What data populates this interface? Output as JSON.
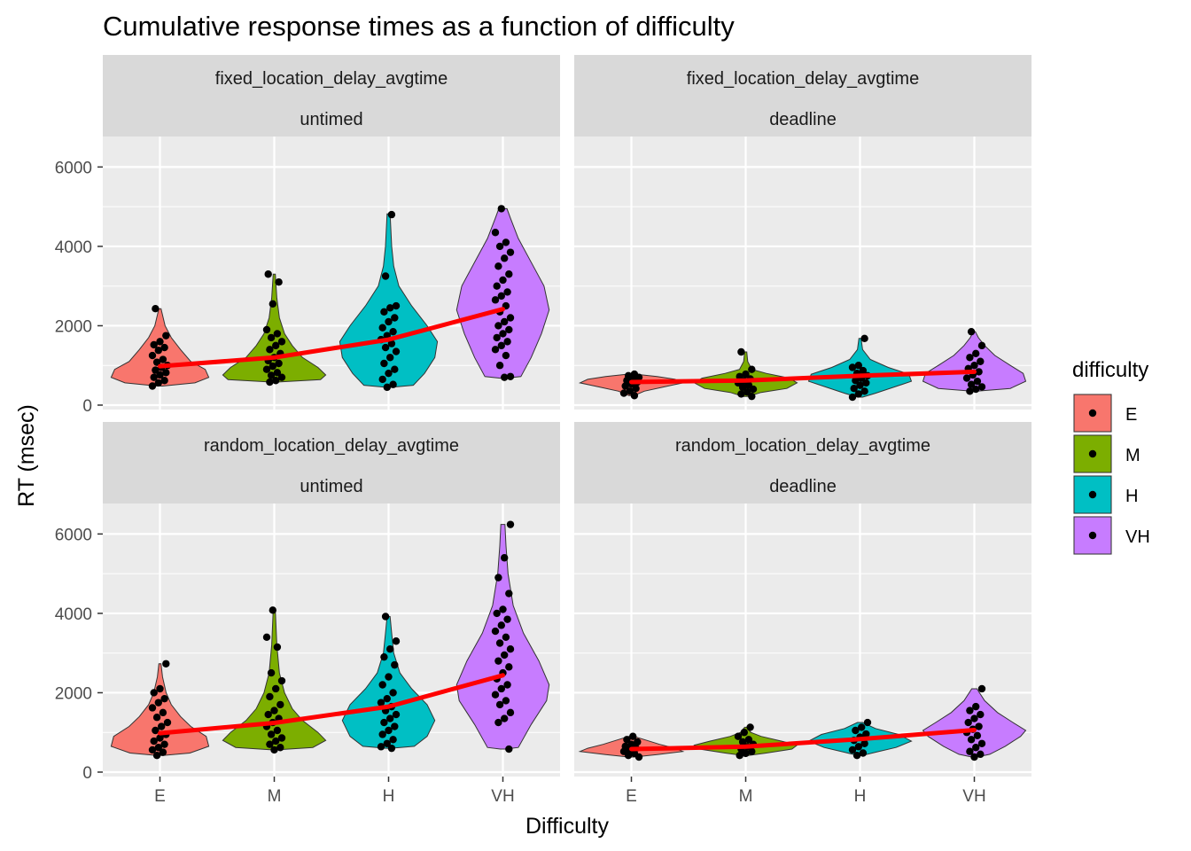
{
  "chart_data": {
    "type": "violin",
    "title": "Cumulative response times as a function of difficulty",
    "xlabel": "Difficulty",
    "ylabel": "RT (msec)",
    "categories": [
      "E",
      "M",
      "H",
      "VH"
    ],
    "y_ticks": [
      "0",
      "2000",
      "4000",
      "6000"
    ],
    "ylim": [
      0,
      6500
    ],
    "grid": true,
    "legend": {
      "title": "difficulty",
      "placement": "right",
      "entries": [
        {
          "label": "E",
          "color": "#F8766D"
        },
        {
          "label": "M",
          "color": "#7CAE00"
        },
        {
          "label": "H",
          "color": "#00BFC4"
        },
        {
          "label": "VH",
          "color": "#C77CFF"
        }
      ]
    },
    "trend_color": "#FF0000",
    "facets": [
      {
        "strip_top": "fixed_location_delay_avgtime",
        "strip_bottom": "untimed",
        "trend": [
          980,
          1200,
          1650,
          2420
        ],
        "violins": [
          {
            "min": 480,
            "max": 2430,
            "shape": [
              [
                480,
                0.05
              ],
              [
                560,
                0.68
              ],
              [
                700,
                0.95
              ],
              [
                900,
                0.88
              ],
              [
                1100,
                0.6
              ],
              [
                1400,
                0.4
              ],
              [
                1700,
                0.22
              ],
              [
                2000,
                0.1
              ],
              [
                2430,
                0.02
              ]
            ]
          },
          {
            "min": 580,
            "max": 3300,
            "shape": [
              [
                580,
                0.05
              ],
              [
                640,
                0.9
              ],
              [
                760,
                1.0
              ],
              [
                950,
                0.85
              ],
              [
                1200,
                0.55
              ],
              [
                1500,
                0.35
              ],
              [
                1800,
                0.2
              ],
              [
                2200,
                0.1
              ],
              [
                2700,
                0.05
              ],
              [
                3300,
                0.02
              ]
            ]
          },
          {
            "min": 450,
            "max": 4820,
            "shape": [
              [
                450,
                0.05
              ],
              [
                500,
                0.48
              ],
              [
                800,
                0.7
              ],
              [
                1200,
                0.9
              ],
              [
                1600,
                0.95
              ],
              [
                2000,
                0.75
              ],
              [
                2500,
                0.45
              ],
              [
                3000,
                0.2
              ],
              [
                3500,
                0.1
              ],
              [
                4000,
                0.06
              ],
              [
                4820,
                0.03
              ]
            ]
          },
          {
            "min": 680,
            "max": 4950,
            "shape": [
              [
                680,
                0.05
              ],
              [
                720,
                0.35
              ],
              [
                1200,
                0.55
              ],
              [
                1800,
                0.75
              ],
              [
                2400,
                0.9
              ],
              [
                3000,
                0.8
              ],
              [
                3600,
                0.55
              ],
              [
                4200,
                0.3
              ],
              [
                4700,
                0.15
              ],
              [
                4950,
                0.08
              ]
            ]
          }
        ],
        "points": [
          [
            480,
            560,
            620,
            700,
            760,
            820,
            880,
            950,
            1000,
            1080,
            1150,
            1250,
            1380,
            1450,
            1520,
            1600,
            1750,
            2430
          ],
          [
            580,
            620,
            700,
            750,
            820,
            900,
            980,
            1050,
            1120,
            1200,
            1300,
            1400,
            1500,
            1600,
            1700,
            1800,
            1900,
            2550,
            3100,
            3300
          ],
          [
            450,
            520,
            650,
            800,
            900,
            1050,
            1200,
            1350,
            1450,
            1550,
            1650,
            1750,
            1850,
            1950,
            2100,
            2200,
            2350,
            2450,
            2500,
            3250,
            4800
          ],
          [
            700,
            720,
            1000,
            1250,
            1400,
            1500,
            1600,
            1700,
            1800,
            1900,
            2000,
            2100,
            2200,
            2350,
            2500,
            2650,
            2750,
            2850,
            3000,
            3150,
            3300,
            3500,
            3700,
            3850,
            4000,
            4100,
            4350,
            4950
          ]
        ]
      },
      {
        "strip_top": "fixed_location_delay_avgtime",
        "strip_bottom": "deadline",
        "trend": [
          580,
          620,
          740,
          840
        ],
        "violins": [
          {
            "min": 240,
            "max": 780,
            "shape": [
              [
                240,
                0.05
              ],
              [
                350,
                0.25
              ],
              [
                450,
                0.6
              ],
              [
                560,
                1.0
              ],
              [
                650,
                0.85
              ],
              [
                720,
                0.5
              ],
              [
                780,
                0.08
              ]
            ]
          },
          {
            "min": 220,
            "max": 1340,
            "shape": [
              [
                220,
                0.05
              ],
              [
                320,
                0.3
              ],
              [
                420,
                0.8
              ],
              [
                560,
                1.0
              ],
              [
                680,
                0.85
              ],
              [
                800,
                0.4
              ],
              [
                900,
                0.12
              ],
              [
                1100,
                0.04
              ],
              [
                1340,
                0.02
              ]
            ]
          },
          {
            "min": 200,
            "max": 1680,
            "shape": [
              [
                200,
                0.05
              ],
              [
                300,
                0.3
              ],
              [
                450,
                0.65
              ],
              [
                600,
                1.0
              ],
              [
                780,
                0.95
              ],
              [
                950,
                0.55
              ],
              [
                1150,
                0.2
              ],
              [
                1400,
                0.05
              ],
              [
                1680,
                0.02
              ]
            ]
          },
          {
            "min": 350,
            "max": 1850,
            "shape": [
              [
                350,
                0.05
              ],
              [
                420,
                0.7
              ],
              [
                600,
                1.0
              ],
              [
                800,
                0.95
              ],
              [
                1000,
                0.7
              ],
              [
                1250,
                0.4
              ],
              [
                1500,
                0.2
              ],
              [
                1700,
                0.08
              ],
              [
                1850,
                0.02
              ]
            ]
          }
        ],
        "points": [
          [
            240,
            300,
            350,
            420,
            480,
            530,
            580,
            620,
            660,
            700,
            740,
            780
          ],
          [
            220,
            280,
            330,
            400,
            450,
            500,
            560,
            610,
            660,
            720,
            780,
            900,
            1340
          ],
          [
            200,
            280,
            350,
            420,
            500,
            560,
            620,
            680,
            740,
            800,
            870,
            950,
            1000,
            1680
          ],
          [
            350,
            400,
            460,
            520,
            600,
            680,
            760,
            840,
            920,
            1000,
            1100,
            1200,
            1300,
            1500,
            1850
          ]
        ]
      },
      {
        "strip_top": "random_location_delay_avgtime",
        "strip_bottom": "untimed",
        "trend": [
          980,
          1240,
          1650,
          2440
        ],
        "violins": [
          {
            "min": 420,
            "max": 2730,
            "shape": [
              [
                420,
                0.05
              ],
              [
                480,
                0.58
              ],
              [
                650,
                0.95
              ],
              [
                900,
                0.9
              ],
              [
                1150,
                0.6
              ],
              [
                1400,
                0.4
              ],
              [
                1700,
                0.22
              ],
              [
                2000,
                0.12
              ],
              [
                2400,
                0.05
              ],
              [
                2730,
                0.02
              ]
            ]
          },
          {
            "min": 560,
            "max": 4080,
            "shape": [
              [
                560,
                0.05
              ],
              [
                620,
                0.75
              ],
              [
                800,
                1.0
              ],
              [
                1000,
                0.85
              ],
              [
                1300,
                0.55
              ],
              [
                1600,
                0.35
              ],
              [
                2000,
                0.2
              ],
              [
                2500,
                0.1
              ],
              [
                3200,
                0.05
              ],
              [
                4080,
                0.02
              ]
            ]
          },
          {
            "min": 600,
            "max": 3920,
            "shape": [
              [
                600,
                0.05
              ],
              [
                650,
                0.5
              ],
              [
                900,
                0.75
              ],
              [
                1300,
                0.9
              ],
              [
                1700,
                0.75
              ],
              [
                2100,
                0.45
              ],
              [
                2500,
                0.22
              ],
              [
                3000,
                0.1
              ],
              [
                3500,
                0.06
              ],
              [
                3920,
                0.03
              ]
            ]
          },
          {
            "min": 580,
            "max": 6240,
            "shape": [
              [
                580,
                0.05
              ],
              [
                620,
                0.3
              ],
              [
                1200,
                0.55
              ],
              [
                1800,
                0.85
              ],
              [
                2200,
                0.9
              ],
              [
                2800,
                0.7
              ],
              [
                3500,
                0.4
              ],
              [
                4200,
                0.2
              ],
              [
                5000,
                0.1
              ],
              [
                5700,
                0.06
              ],
              [
                6240,
                0.04
              ]
            ]
          }
        ],
        "points": [
          [
            420,
            500,
            560,
            620,
            700,
            780,
            860,
            950,
            1050,
            1150,
            1250,
            1380,
            1500,
            1620,
            1750,
            1850,
            2000,
            2100,
            2730
          ],
          [
            560,
            620,
            700,
            780,
            860,
            950,
            1050,
            1150,
            1250,
            1350,
            1450,
            1550,
            1700,
            1900,
            2100,
            2300,
            2500,
            3150,
            3400,
            4080
          ],
          [
            600,
            640,
            720,
            820,
            950,
            1050,
            1150,
            1250,
            1350,
            1450,
            1550,
            1650,
            1750,
            1850,
            2000,
            2200,
            2400,
            2700,
            2900,
            3100,
            3300,
            3920
          ],
          [
            580,
            1250,
            1350,
            1500,
            1700,
            1800,
            1950,
            2100,
            2200,
            2350,
            2500,
            2650,
            2800,
            2950,
            3100,
            3250,
            3400,
            3550,
            3700,
            3850,
            4000,
            4100,
            4500,
            4900,
            5400,
            6240
          ]
        ]
      },
      {
        "strip_top": "random_location_delay_avgtime",
        "strip_bottom": "deadline",
        "trend": [
          580,
          640,
          830,
          1060
        ],
        "violins": [
          {
            "min": 380,
            "max": 900,
            "shape": [
              [
                380,
                0.05
              ],
              [
                440,
                0.5
              ],
              [
                520,
                1.0
              ],
              [
                600,
                0.85
              ],
              [
                700,
                0.55
              ],
              [
                800,
                0.3
              ],
              [
                900,
                0.05
              ]
            ]
          },
          {
            "min": 420,
            "max": 1130,
            "shape": [
              [
                420,
                0.05
              ],
              [
                480,
                0.4
              ],
              [
                580,
                0.9
              ],
              [
                680,
                1.0
              ],
              [
                780,
                0.7
              ],
              [
                900,
                0.3
              ],
              [
                1000,
                0.1
              ],
              [
                1130,
                0.02
              ]
            ]
          },
          {
            "min": 420,
            "max": 1250,
            "shape": [
              [
                420,
                0.05
              ],
              [
                500,
                0.3
              ],
              [
                620,
                0.7
              ],
              [
                780,
                1.0
              ],
              [
                950,
                0.75
              ],
              [
                1100,
                0.3
              ],
              [
                1250,
                0.05
              ]
            ]
          },
          {
            "min": 380,
            "max": 2100,
            "shape": [
              [
                380,
                0.05
              ],
              [
                450,
                0.3
              ],
              [
                650,
                0.6
              ],
              [
                900,
                0.9
              ],
              [
                1050,
                1.0
              ],
              [
                1250,
                0.75
              ],
              [
                1500,
                0.45
              ],
              [
                1800,
                0.2
              ],
              [
                2100,
                0.05
              ]
            ]
          }
        ],
        "points": [
          [
            380,
            420,
            470,
            520,
            560,
            600,
            650,
            700,
            760,
            820,
            900
          ],
          [
            420,
            470,
            520,
            580,
            640,
            700,
            760,
            820,
            900,
            1000,
            1130
          ],
          [
            420,
            480,
            560,
            640,
            720,
            800,
            880,
            960,
            1050,
            1130,
            1250
          ],
          [
            380,
            450,
            520,
            620,
            720,
            820,
            920,
            1000,
            1080,
            1150,
            1250,
            1350,
            1450,
            1550,
            1650,
            2100
          ]
        ]
      }
    ]
  }
}
